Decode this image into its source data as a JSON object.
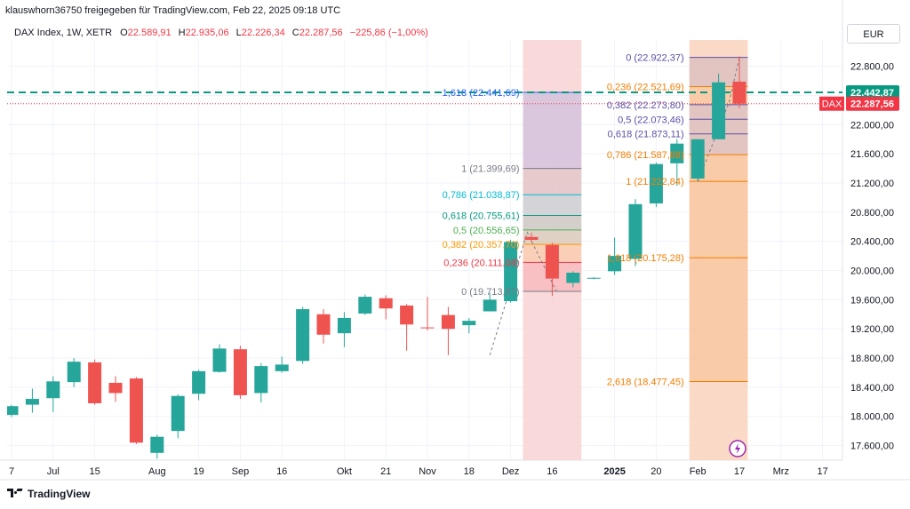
{
  "header": {
    "publisher": "klauswhorn36750 freigegeben für TradingView.com, Feb 22, 2025 09:18 UTC"
  },
  "legend": {
    "symbol": "DAX Index, 1W, XETR",
    "open_label": "O",
    "open": "22.589,91",
    "high_label": "H",
    "high": "22.935,06",
    "low_label": "L",
    "low": "22.226,34",
    "close_label": "C",
    "close": "22.287,56",
    "change": "−225,86 (−1,00%)"
  },
  "currency": "EUR",
  "brand": "TradingView",
  "colors": {
    "up": "#26a69a",
    "down": "#ef5350",
    "grid": "#f0f3fa",
    "axis_text": "#131722"
  },
  "chart_data": {
    "type": "candlestick",
    "interval": "1W",
    "ylim": [
      17400,
      23100
    ],
    "y_ticks": [
      17600,
      18000,
      18400,
      18800,
      19200,
      19600,
      20000,
      20400,
      20800,
      21200,
      21600,
      22000,
      22400,
      22800
    ],
    "y_tick_labels": [
      "17.600,00",
      "18.000,00",
      "18.400,00",
      "18.800,00",
      "19.200,00",
      "19.600,00",
      "20.000,00",
      "20.400,00",
      "20.800,00",
      "21.200,00",
      "21.600,00",
      "22.000,00",
      "22.400,00",
      "22.800,00"
    ],
    "x_ticks": [
      {
        "label": "7",
        "index": 0,
        "bold": false
      },
      {
        "label": "Jul",
        "index": 2,
        "bold": false
      },
      {
        "label": "15",
        "index": 4,
        "bold": false
      },
      {
        "label": "Aug",
        "index": 7,
        "bold": false
      },
      {
        "label": "19",
        "index": 9,
        "bold": false
      },
      {
        "label": "Sep",
        "index": 11,
        "bold": false
      },
      {
        "label": "16",
        "index": 13,
        "bold": false
      },
      {
        "label": "Okt",
        "index": 16,
        "bold": false
      },
      {
        "label": "21",
        "index": 18,
        "bold": false
      },
      {
        "label": "Nov",
        "index": 20,
        "bold": false
      },
      {
        "label": "18",
        "index": 22,
        "bold": false
      },
      {
        "label": "Dez",
        "index": 24,
        "bold": false
      },
      {
        "label": "16",
        "index": 26,
        "bold": false
      },
      {
        "label": "2025",
        "index": 29,
        "bold": true
      },
      {
        "label": "20",
        "index": 31,
        "bold": false
      },
      {
        "label": "Feb",
        "index": 33,
        "bold": false
      },
      {
        "label": "17",
        "index": 35,
        "bold": false
      },
      {
        "label": "Mrz",
        "index": 37,
        "bold": false
      },
      {
        "label": "17",
        "index": 39,
        "bold": false
      }
    ],
    "candles": [
      {
        "o": 18020,
        "h": 18160,
        "l": 17990,
        "c": 18140
      },
      {
        "o": 18160,
        "h": 18380,
        "l": 18050,
        "c": 18240
      },
      {
        "o": 18250,
        "h": 18550,
        "l": 18060,
        "c": 18480
      },
      {
        "o": 18470,
        "h": 18800,
        "l": 18400,
        "c": 18750
      },
      {
        "o": 18740,
        "h": 18780,
        "l": 18160,
        "c": 18180
      },
      {
        "o": 18460,
        "h": 18550,
        "l": 18200,
        "c": 18320
      },
      {
        "o": 18520,
        "h": 18540,
        "l": 17620,
        "c": 17640
      },
      {
        "o": 17500,
        "h": 17750,
        "l": 17420,
        "c": 17720
      },
      {
        "o": 17800,
        "h": 18300,
        "l": 17700,
        "c": 18280
      },
      {
        "o": 18310,
        "h": 18640,
        "l": 18220,
        "c": 18620
      },
      {
        "o": 18610,
        "h": 18990,
        "l": 18600,
        "c": 18930
      },
      {
        "o": 18920,
        "h": 18970,
        "l": 18240,
        "c": 18290
      },
      {
        "o": 18320,
        "h": 18730,
        "l": 18190,
        "c": 18690
      },
      {
        "o": 18620,
        "h": 18820,
        "l": 18600,
        "c": 18710
      },
      {
        "o": 18760,
        "h": 19500,
        "l": 18720,
        "c": 19470
      },
      {
        "o": 19400,
        "h": 19470,
        "l": 19000,
        "c": 19120
      },
      {
        "o": 19140,
        "h": 19430,
        "l": 18950,
        "c": 19350
      },
      {
        "o": 19410,
        "h": 19670,
        "l": 19390,
        "c": 19640
      },
      {
        "o": 19620,
        "h": 19660,
        "l": 19330,
        "c": 19480
      },
      {
        "o": 19520,
        "h": 19540,
        "l": 18900,
        "c": 19260
      },
      {
        "o": 19220,
        "h": 19640,
        "l": 19180,
        "c": 19210
      },
      {
        "o": 19390,
        "h": 19500,
        "l": 18840,
        "c": 19200
      },
      {
        "o": 19250,
        "h": 19350,
        "l": 19140,
        "c": 19310
      },
      {
        "o": 19440,
        "h": 19690,
        "l": 19440,
        "c": 19600
      },
      {
        "o": 19580,
        "h": 20420,
        "l": 19560,
        "c": 20390
      },
      {
        "o": 20460,
        "h": 20520,
        "l": 20390,
        "c": 20420
      },
      {
        "o": 20350,
        "h": 20380,
        "l": 19650,
        "c": 19890
      },
      {
        "o": 19830,
        "h": 19990,
        "l": 19770,
        "c": 19970
      },
      {
        "o": 19890,
        "h": 19910,
        "l": 19880,
        "c": 19900
      },
      {
        "o": 19990,
        "h": 20450,
        "l": 19940,
        "c": 20200
      },
      {
        "o": 20160,
        "h": 20980,
        "l": 20060,
        "c": 20910
      },
      {
        "o": 20920,
        "h": 21480,
        "l": 20870,
        "c": 21460
      },
      {
        "o": 21470,
        "h": 21800,
        "l": 21160,
        "c": 21740
      },
      {
        "o": 21260,
        "h": 21800,
        "l": 21220,
        "c": 21800
      },
      {
        "o": 21800,
        "h": 22700,
        "l": 21800,
        "c": 22580
      },
      {
        "o": 22590,
        "h": 22935,
        "l": 22226,
        "c": 22288
      }
    ],
    "price_lines": [
      {
        "label": "22.442,87",
        "value": 22442.87,
        "color": "#089981",
        "dashed": true
      },
      {
        "label": "22.287,56",
        "tag": "DAX",
        "value": 22287.56,
        "color": "#f23645",
        "dotted": true
      }
    ],
    "fib_left": {
      "x_range": [
        25,
        27
      ],
      "levels": [
        {
          "label": "1,618 (22.441,69)",
          "value": 22441.69,
          "color": "#2962ff"
        },
        {
          "label": "1 (21.399,69)",
          "value": 21399.69,
          "color": "#787b86"
        },
        {
          "label": "0,786 (21.038,87)",
          "value": 21038.87,
          "color": "#00bcd4"
        },
        {
          "label": "0,618 (20.755,61)",
          "value": 20755.61,
          "color": "#089981"
        },
        {
          "label": "0,5 (20.556,65)",
          "value": 20556.65,
          "color": "#4caf50"
        },
        {
          "label": "0,382 (20.357,70)",
          "value": 20357.7,
          "color": "#ff9800"
        },
        {
          "label": "0,236 (20.111,08)",
          "value": 20111.08,
          "color": "#f23645"
        },
        {
          "label": "0 (19.713,87)",
          "value": 19713.87,
          "color": "#787b86"
        }
      ],
      "trend": [
        {
          "x": 23,
          "y": 18840
        },
        {
          "x": 24.8,
          "y": 20522
        },
        {
          "x": 26.2,
          "y": 19714
        }
      ]
    },
    "fib_right": {
      "x_range": [
        33,
        35
      ],
      "levels": [
        {
          "label": "0 (22.922,37)",
          "value": 22922.37,
          "color": "#5b4fa6"
        },
        {
          "label": "0,236 (22.521,69)",
          "value": 22521.69,
          "color": "#f57c00"
        },
        {
          "label": "0,382 (22.273,80)",
          "value": 22273.8,
          "color": "#5b4fa6"
        },
        {
          "label": "0,5 (22.073,46)",
          "value": 22073.46,
          "color": "#5b4fa6"
        },
        {
          "label": "0,618 (21.873,11)",
          "value": 21873.11,
          "color": "#5b4fa6"
        },
        {
          "label": "0,786 (21.587,88)",
          "value": 21587.88,
          "color": "#f57c00"
        },
        {
          "label": "1 (21.222,84)",
          "value": 21222.84,
          "color": "#f57c00"
        },
        {
          "label": "1,618 (20.175,28)",
          "value": 20175.28,
          "color": "#f57c00"
        },
        {
          "label": "2,618 (18.477,45)",
          "value": 18477.45,
          "color": "#f57c00"
        }
      ],
      "trend": [
        {
          "x": 33,
          "y": 21220
        },
        {
          "x": 34.5,
          "y": 22300
        },
        {
          "x": 35,
          "y": 22922
        }
      ]
    }
  }
}
